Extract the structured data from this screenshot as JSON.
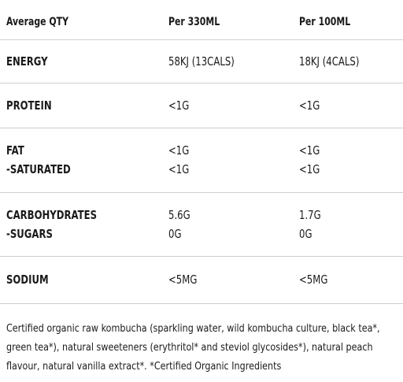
{
  "table": {
    "header": [
      "Average QTY",
      "Per 330ML",
      "Per 100ML"
    ],
    "rows": [
      [
        [
          "ENERGY"
        ],
        [
          "58KJ (13CALS)"
        ],
        [
          "18KJ (4CALS)"
        ]
      ],
      [
        [
          "PROTEIN"
        ],
        [
          "<1G"
        ],
        [
          "<1G"
        ]
      ],
      [
        [
          "FAT",
          "-SATURATED"
        ],
        [
          "<1G",
          "<1G"
        ],
        [
          "<1G",
          "<1G"
        ]
      ],
      [
        [
          "CARBOHYDRATES",
          "-SUGARS"
        ],
        [
          "5.6G",
          "0G"
        ],
        [
          "1.7G",
          "0G"
        ]
      ],
      [
        [
          "SODIUM"
        ],
        [
          "<5MG"
        ],
        [
          "<5MG"
        ]
      ]
    ]
  },
  "footer": {
    "lines": [
      "Certified organic raw kombucha (sparkling water, wild kombucha culture, black tea*,",
      "green tea*), natural sweeteners (erythritol* and steviol glycosides*), natural peach",
      "flavour, natural vanilla extract*. *Certified Organic Ingredients"
    ]
  }
}
